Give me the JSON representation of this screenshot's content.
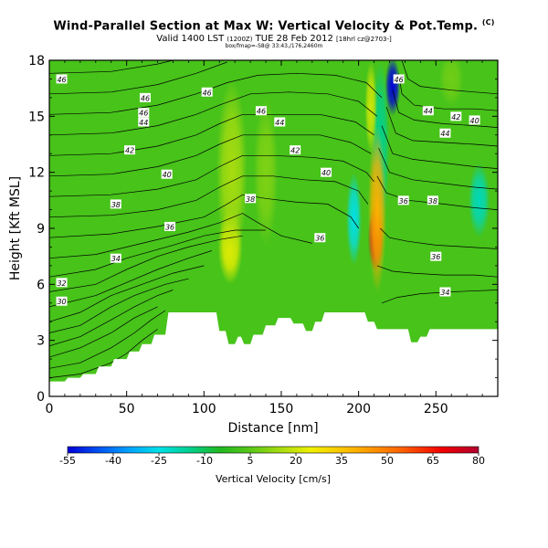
{
  "title": {
    "main": "Wind-Parallel Section at Max W: Vertical Velocity & Pot.Temp.",
    "copyright": "(C)",
    "valid": "Valid 1400 LST",
    "valid_time_code": "(1200Z)",
    "valid_date": "TUE 28 Feb 2012",
    "run_info": "[18hrl cz@2703-]",
    "subtitle": "box/fmap=-S8@ 33:43,/176,2460m"
  },
  "chart_data": {
    "type": "heatmap",
    "xlabel": "Distance [nm]",
    "ylabel": "Height [Kft MSL]",
    "xlim": [
      0,
      290
    ],
    "ylim": [
      0,
      18
    ],
    "x_ticks": [
      "0",
      "50",
      "100",
      "150",
      "200",
      "250"
    ],
    "y_ticks": [
      "0",
      "3",
      "6",
      "9",
      "12",
      "15",
      "18"
    ],
    "colorbar": {
      "label": "Vertical Velocity [cm/s]",
      "ticks": [
        "-55",
        "-40",
        "-25",
        "-10",
        "5",
        "20",
        "35",
        "50",
        "65",
        "80"
      ],
      "min": -55,
      "max": 80,
      "stops": [
        {
          "v": -55,
          "color": "#0000d8"
        },
        {
          "v": -45,
          "color": "#0050f0"
        },
        {
          "v": -35,
          "color": "#00a0ff"
        },
        {
          "v": -25,
          "color": "#00e0e8"
        },
        {
          "v": -15,
          "color": "#00d090"
        },
        {
          "v": -5,
          "color": "#20b820"
        },
        {
          "v": 5,
          "color": "#58c818"
        },
        {
          "v": 15,
          "color": "#a8dc10"
        },
        {
          "v": 25,
          "color": "#f0f000"
        },
        {
          "v": 40,
          "color": "#ffb000"
        },
        {
          "v": 55,
          "color": "#ff6000"
        },
        {
          "v": 68,
          "color": "#f00000"
        },
        {
          "v": 80,
          "color": "#b00030"
        }
      ]
    },
    "background_value": 2,
    "velocity_features": [
      {
        "name": "strong-downdraft-top",
        "x": 222,
        "y": 16.6,
        "value": -55,
        "rx": 5,
        "ry": 1.6
      },
      {
        "name": "downdraft-column",
        "x": 214,
        "y": 13.5,
        "value": -15,
        "rx": 6,
        "ry": 4.5
      },
      {
        "name": "updraft-core",
        "x": 211,
        "y": 8.5,
        "value": 75,
        "rx": 5,
        "ry": 1.8
      },
      {
        "name": "updraft-column",
        "x": 212,
        "y": 10,
        "value": 40,
        "rx": 6,
        "ry": 4.5
      },
      {
        "name": "downdraft-left-of-core",
        "x": 197,
        "y": 9.5,
        "value": -25,
        "rx": 5,
        "ry": 2.5
      },
      {
        "name": "updraft-upper-band",
        "x": 208,
        "y": 15.5,
        "value": 20,
        "rx": 4,
        "ry": 2.5
      },
      {
        "name": "updraft-mid",
        "x": 117,
        "y": 8,
        "value": 25,
        "rx": 8,
        "ry": 2
      },
      {
        "name": "updraft-tall",
        "x": 118,
        "y": 12,
        "value": 15,
        "rx": 10,
        "ry": 5
      },
      {
        "name": "updraft-mid-2",
        "x": 140,
        "y": 12,
        "value": 10,
        "rx": 8,
        "ry": 4
      },
      {
        "name": "downdraft-right",
        "x": 278,
        "y": 10.5,
        "value": -20,
        "rx": 7,
        "ry": 2
      },
      {
        "name": "updraft-top-right",
        "x": 260,
        "y": 17,
        "value": 8,
        "rx": 8,
        "ry": 1.5
      }
    ],
    "terrain": [
      [
        0,
        0.8
      ],
      [
        10,
        0.8
      ],
      [
        12,
        1.0
      ],
      [
        20,
        1.0
      ],
      [
        22,
        1.2
      ],
      [
        30,
        1.2
      ],
      [
        32,
        1.6
      ],
      [
        40,
        1.6
      ],
      [
        42,
        2.0
      ],
      [
        50,
        2.0
      ],
      [
        52,
        2.4
      ],
      [
        58,
        2.4
      ],
      [
        60,
        2.8
      ],
      [
        66,
        2.8
      ],
      [
        68,
        3.3
      ],
      [
        75,
        3.3
      ],
      [
        77,
        4.5
      ],
      [
        108,
        4.5
      ],
      [
        110,
        3.5
      ],
      [
        114,
        3.5
      ],
      [
        116,
        2.8
      ],
      [
        120,
        2.8
      ],
      [
        122,
        3.2
      ],
      [
        124,
        3.2
      ],
      [
        126,
        2.8
      ],
      [
        130,
        2.8
      ],
      [
        132,
        3.3
      ],
      [
        138,
        3.3
      ],
      [
        140,
        3.8
      ],
      [
        146,
        3.8
      ],
      [
        148,
        4.2
      ],
      [
        156,
        4.2
      ],
      [
        158,
        3.9
      ],
      [
        164,
        3.9
      ],
      [
        166,
        3.5
      ],
      [
        170,
        3.5
      ],
      [
        172,
        4.0
      ],
      [
        176,
        4.0
      ],
      [
        178,
        4.5
      ],
      [
        204,
        4.5
      ],
      [
        206,
        4.0
      ],
      [
        210,
        4.0
      ],
      [
        212,
        3.6
      ],
      [
        232,
        3.6
      ],
      [
        234,
        2.9
      ],
      [
        238,
        2.9
      ],
      [
        240,
        3.2
      ],
      [
        244,
        3.2
      ],
      [
        246,
        3.6
      ],
      [
        290,
        3.6
      ]
    ],
    "contour_labels": [
      {
        "text": "46",
        "x": 8,
        "y": 17.0
      },
      {
        "text": "46",
        "x": 62,
        "y": 16.0
      },
      {
        "text": "46",
        "x": 102,
        "y": 16.3
      },
      {
        "text": "46",
        "x": 137,
        "y": 15.3
      },
      {
        "text": "46",
        "x": 226,
        "y": 17.0
      },
      {
        "text": "46",
        "x": 61,
        "y": 15.2
      },
      {
        "text": "44",
        "x": 61,
        "y": 14.7
      },
      {
        "text": "44",
        "x": 149,
        "y": 14.7
      },
      {
        "text": "44",
        "x": 256,
        "y": 14.1
      },
      {
        "text": "44",
        "x": 245,
        "y": 15.3
      },
      {
        "text": "42",
        "x": 52,
        "y": 13.2
      },
      {
        "text": "42",
        "x": 159,
        "y": 13.2
      },
      {
        "text": "42",
        "x": 263,
        "y": 15.0
      },
      {
        "text": "40",
        "x": 76,
        "y": 11.9
      },
      {
        "text": "40",
        "x": 179,
        "y": 12.0
      },
      {
        "text": "40",
        "x": 275,
        "y": 14.8
      },
      {
        "text": "38",
        "x": 43,
        "y": 10.3
      },
      {
        "text": "38",
        "x": 130,
        "y": 10.6
      },
      {
        "text": "38",
        "x": 248,
        "y": 10.5
      },
      {
        "text": "36",
        "x": 78,
        "y": 9.1
      },
      {
        "text": "36",
        "x": 175,
        "y": 8.5
      },
      {
        "text": "36",
        "x": 229,
        "y": 10.5
      },
      {
        "text": "34",
        "x": 43,
        "y": 7.4
      },
      {
        "text": "36",
        "x": 250,
        "y": 7.5
      },
      {
        "text": "34",
        "x": 256,
        "y": 5.6
      },
      {
        "text": "32",
        "x": 8,
        "y": 6.1
      },
      {
        "text": "30",
        "x": 8,
        "y": 5.1
      }
    ],
    "isentropes": [
      [
        [
          0,
          1.0
        ],
        [
          20,
          1.2
        ],
        [
          40,
          1.8
        ],
        [
          50,
          2.3
        ],
        [
          60,
          3.0
        ],
        [
          70,
          3.6
        ]
      ],
      [
        [
          0,
          1.5
        ],
        [
          20,
          1.8
        ],
        [
          40,
          2.6
        ],
        [
          55,
          3.4
        ],
        [
          66,
          4.1
        ],
        [
          75,
          4.6
        ]
      ],
      [
        [
          0,
          2.1
        ],
        [
          20,
          2.6
        ],
        [
          40,
          3.4
        ],
        [
          55,
          4.2
        ],
        [
          70,
          4.8
        ]
      ],
      [
        [
          0,
          2.7
        ],
        [
          20,
          3.2
        ],
        [
          40,
          4.1
        ],
        [
          55,
          4.8
        ],
        [
          70,
          5.4
        ],
        [
          80,
          5.7
        ]
      ],
      [
        [
          0,
          3.4
        ],
        [
          20,
          3.8
        ],
        [
          40,
          4.8
        ],
        [
          55,
          5.4
        ],
        [
          75,
          6.0
        ],
        [
          90,
          6.3
        ]
      ],
      [
        [
          0,
          4.0
        ],
        [
          20,
          4.5
        ],
        [
          40,
          5.4
        ],
        [
          60,
          6.0
        ],
        [
          80,
          6.6
        ],
        [
          100,
          7.0
        ]
      ],
      [
        [
          0,
          4.8
        ],
        [
          30,
          5.4
        ],
        [
          50,
          6.1
        ],
        [
          70,
          6.8
        ],
        [
          90,
          7.4
        ],
        [
          105,
          7.8
        ]
      ],
      [
        [
          0,
          5.6
        ],
        [
          30,
          6.0
        ],
        [
          50,
          6.8
        ],
        [
          70,
          7.5
        ],
        [
          90,
          8.0
        ],
        [
          110,
          8.4
        ],
        [
          125,
          8.6
        ]
      ],
      [
        [
          0,
          6.4
        ],
        [
          30,
          6.8
        ],
        [
          50,
          7.4
        ],
        [
          80,
          8.1
        ],
        [
          100,
          8.6
        ],
        [
          120,
          8.9
        ],
        [
          140,
          8.9
        ]
      ],
      [
        [
          0,
          7.4
        ],
        [
          30,
          7.6
        ],
        [
          60,
          8.2
        ],
        [
          90,
          8.8
        ],
        [
          110,
          9.3
        ],
        [
          125,
          9.8
        ],
        [
          135,
          9.3
        ],
        [
          150,
          8.6
        ],
        [
          170,
          8.2
        ]
      ],
      [
        [
          0,
          8.5
        ],
        [
          40,
          8.7
        ],
        [
          70,
          9.1
        ],
        [
          100,
          9.6
        ],
        [
          115,
          10.3
        ],
        [
          125,
          10.8
        ],
        [
          140,
          10.6
        ],
        [
          160,
          10.4
        ],
        [
          180,
          10.3
        ],
        [
          195,
          9.6
        ],
        [
          200,
          9.0
        ]
      ],
      [
        [
          0,
          9.6
        ],
        [
          40,
          9.7
        ],
        [
          70,
          10.0
        ],
        [
          95,
          10.5
        ],
        [
          110,
          11.2
        ],
        [
          125,
          11.8
        ],
        [
          145,
          11.8
        ],
        [
          165,
          11.6
        ],
        [
          185,
          11.5
        ],
        [
          200,
          11.0
        ],
        [
          206,
          10.3
        ]
      ],
      [
        [
          0,
          10.7
        ],
        [
          40,
          10.8
        ],
        [
          70,
          11.1
        ],
        [
          95,
          11.6
        ],
        [
          110,
          12.3
        ],
        [
          125,
          12.9
        ],
        [
          145,
          12.9
        ],
        [
          170,
          12.8
        ],
        [
          190,
          12.6
        ],
        [
          205,
          12.0
        ],
        [
          210,
          11.5
        ]
      ],
      [
        [
          0,
          11.8
        ],
        [
          40,
          11.9
        ],
        [
          70,
          12.3
        ],
        [
          95,
          12.9
        ],
        [
          110,
          13.5
        ],
        [
          125,
          14.0
        ],
        [
          150,
          14.0
        ],
        [
          175,
          14.0
        ],
        [
          195,
          13.6
        ],
        [
          208,
          13.0
        ]
      ],
      [
        [
          0,
          12.9
        ],
        [
          40,
          13.0
        ],
        [
          70,
          13.4
        ],
        [
          95,
          14.0
        ],
        [
          110,
          14.6
        ],
        [
          125,
          15.1
        ],
        [
          150,
          15.1
        ],
        [
          175,
          15.1
        ],
        [
          198,
          14.7
        ],
        [
          210,
          14.0
        ]
      ],
      [
        [
          0,
          14.0
        ],
        [
          40,
          14.1
        ],
        [
          70,
          14.5
        ],
        [
          95,
          15.1
        ],
        [
          110,
          15.6
        ],
        [
          130,
          16.2
        ],
        [
          155,
          16.3
        ],
        [
          180,
          16.2
        ],
        [
          200,
          15.8
        ],
        [
          212,
          15.0
        ]
      ],
      [
        [
          0,
          15.1
        ],
        [
          40,
          15.2
        ],
        [
          70,
          15.6
        ],
        [
          95,
          16.2
        ],
        [
          115,
          16.8
        ],
        [
          135,
          17.2
        ],
        [
          160,
          17.3
        ],
        [
          185,
          17.2
        ],
        [
          205,
          16.8
        ],
        [
          215,
          16.0
        ]
      ],
      [
        [
          0,
          16.2
        ],
        [
          40,
          16.3
        ],
        [
          70,
          16.7
        ],
        [
          95,
          17.3
        ],
        [
          115,
          17.9
        ]
      ],
      [
        [
          0,
          17.3
        ],
        [
          40,
          17.4
        ],
        [
          70,
          17.8
        ],
        [
          80,
          18.0
        ]
      ],
      [
        [
          228,
          18.0
        ],
        [
          232,
          17.0
        ],
        [
          240,
          16.6
        ],
        [
          260,
          16.4
        ],
        [
          290,
          16.2
        ]
      ],
      [
        [
          226,
          17.3
        ],
        [
          228,
          16.2
        ],
        [
          236,
          15.6
        ],
        [
          255,
          15.4
        ],
        [
          275,
          15.4
        ],
        [
          290,
          15.3
        ]
      ],
      [
        [
          222,
          16.4
        ],
        [
          226,
          15.2
        ],
        [
          236,
          14.8
        ],
        [
          255,
          14.6
        ],
        [
          275,
          14.5
        ],
        [
          290,
          14.4
        ]
      ],
      [
        [
          218,
          15.5
        ],
        [
          224,
          14.1
        ],
        [
          235,
          13.7
        ],
        [
          255,
          13.6
        ],
        [
          275,
          13.5
        ],
        [
          290,
          13.4
        ]
      ],
      [
        [
          215,
          14.5
        ],
        [
          222,
          13.0
        ],
        [
          235,
          12.7
        ],
        [
          255,
          12.5
        ],
        [
          275,
          12.3
        ],
        [
          290,
          12.2
        ]
      ],
      [
        [
          213,
          13.3
        ],
        [
          220,
          12.0
        ],
        [
          235,
          11.6
        ],
        [
          255,
          11.4
        ],
        [
          275,
          11.2
        ],
        [
          290,
          11.1
        ]
      ],
      [
        [
          212,
          11.8
        ],
        [
          218,
          10.9
        ],
        [
          232,
          10.5
        ],
        [
          255,
          10.3
        ],
        [
          275,
          10.1
        ],
        [
          290,
          10.0
        ]
      ],
      [
        [
          214,
          9.0
        ],
        [
          220,
          8.5
        ],
        [
          232,
          8.3
        ],
        [
          250,
          8.1
        ],
        [
          270,
          8.0
        ],
        [
          290,
          7.9
        ]
      ],
      [
        [
          212,
          7.0
        ],
        [
          222,
          6.7
        ],
        [
          235,
          6.6
        ],
        [
          255,
          6.5
        ],
        [
          275,
          6.5
        ],
        [
          290,
          6.4
        ]
      ],
      [
        [
          215,
          5.0
        ],
        [
          225,
          5.3
        ],
        [
          240,
          5.5
        ],
        [
          260,
          5.6
        ],
        [
          290,
          5.7
        ]
      ]
    ]
  }
}
